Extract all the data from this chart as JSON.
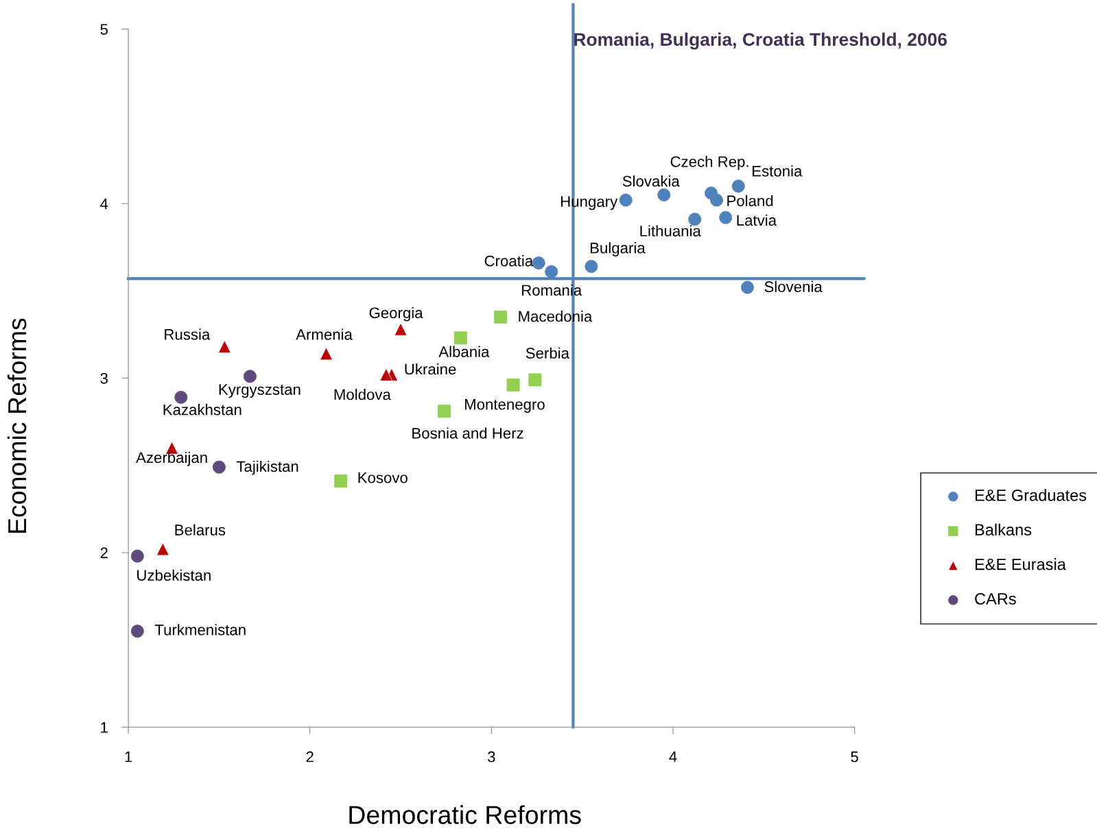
{
  "chart_data": {
    "type": "scatter",
    "xlabel": "Democratic Reforms",
    "ylabel": "Economic Reforms",
    "xlim": [
      1,
      5
    ],
    "xticks": [
      1,
      2,
      3,
      4,
      5
    ],
    "ylim": [
      1,
      5
    ],
    "yticks": [
      1,
      2,
      3,
      4,
      5
    ],
    "grid": false,
    "legend": "right",
    "ref_lines": [
      {
        "axis": "x",
        "value": 3.45,
        "label": "Romania, Bulgaria, Croatia Threshold, 2006",
        "color": "#4f81bd"
      },
      {
        "axis": "y",
        "value": 3.57,
        "color": "#4f81bd"
      }
    ],
    "series": [
      {
        "name": "E&E Graduates",
        "color": "#4f81bd",
        "marker": "circle",
        "x": [
          3.74,
          3.95,
          4.21,
          4.24,
          4.36,
          4.29,
          4.12,
          3.55,
          3.26,
          3.33,
          4.41
        ],
        "values": [
          4.02,
          4.05,
          4.06,
          4.02,
          4.1,
          3.92,
          3.91,
          3.64,
          3.66,
          3.61,
          3.52
        ],
        "value_labels": [
          "Hungary",
          "Slovakia",
          "Czech Rep.",
          "Poland",
          "Estonia",
          "Latvia",
          "Lithuania",
          "Bulgaria",
          "Croatia",
          "Romania",
          "Slovenia"
        ]
      },
      {
        "name": "Balkans",
        "color": "#92d050",
        "marker": "square",
        "x": [
          3.05,
          2.83,
          3.24,
          3.12,
          2.74,
          2.17
        ],
        "values": [
          3.35,
          3.23,
          2.99,
          2.96,
          2.81,
          2.41
        ],
        "value_labels": [
          "Macedonia",
          "Albania",
          "Serbia",
          "Montenegro",
          "Bosnia and Herz",
          "Kosovo"
        ]
      },
      {
        "name": "E&E Eurasia",
        "color": "#c00000",
        "marker": "triangle",
        "x": [
          1.53,
          2.09,
          2.5,
          2.45,
          2.42,
          1.24,
          1.19
        ],
        "values": [
          3.18,
          3.14,
          3.28,
          3.02,
          3.02,
          2.6,
          2.02
        ],
        "value_labels": [
          "Russia",
          "Armenia",
          "Georgia",
          "Ukraine",
          "Moldova",
          "Azerbaijan",
          "Belarus"
        ]
      },
      {
        "name": "CARs",
        "color": "#604a7b",
        "marker": "circle",
        "x": [
          1.67,
          1.29,
          1.5,
          1.05,
          1.05
        ],
        "values": [
          3.01,
          2.89,
          2.49,
          1.98,
          1.55
        ],
        "value_labels": [
          "Kyrgyszstan",
          "Kazakhstan",
          "Tajikistan",
          "Uzbekistan",
          "Turkmenistan"
        ]
      }
    ]
  }
}
